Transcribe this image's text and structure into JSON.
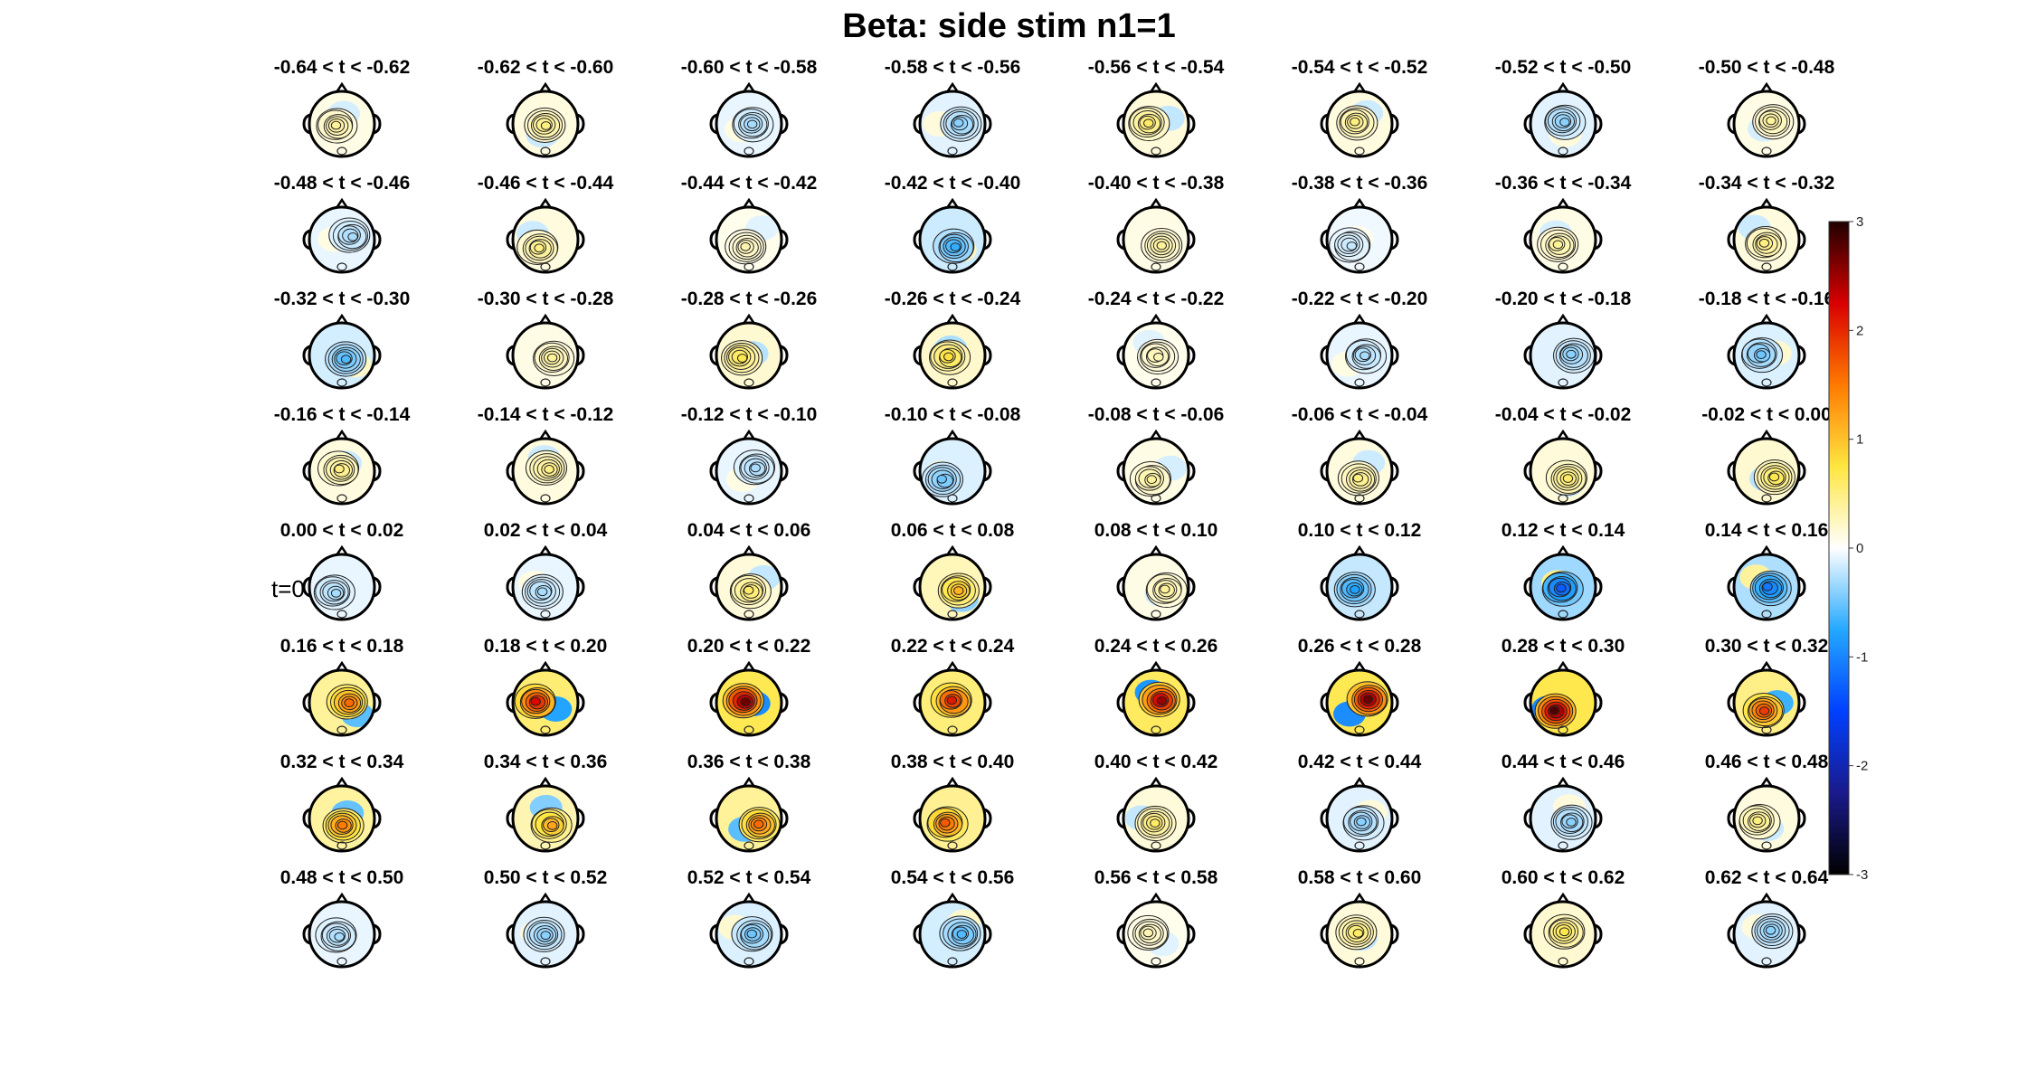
{
  "figure": {
    "title": "Beta: side stim  n1=1",
    "zero_marker_label": "t=0"
  },
  "chart_data": {
    "type": "heatmap",
    "description_kind": "topographic scalp maps grid",
    "title": "Beta: side stim  n1=1",
    "rows": 8,
    "cols": 8,
    "panel_titles": [
      "-0.64 < t < -0.62",
      "-0.62 < t < -0.60",
      "-0.60 < t < -0.58",
      "-0.58 < t < -0.56",
      "-0.56 < t < -0.54",
      "-0.54 < t < -0.52",
      "-0.52 < t < -0.50",
      "-0.50 < t < -0.48",
      "-0.48 < t < -0.46",
      "-0.46 < t < -0.44",
      "-0.44 < t < -0.42",
      "-0.42 < t < -0.40",
      "-0.40 < t < -0.38",
      "-0.38 < t < -0.36",
      "-0.36 < t < -0.34",
      "-0.34 < t < -0.32",
      "-0.32 < t < -0.30",
      "-0.30 < t < -0.28",
      "-0.28 < t < -0.26",
      "-0.26 < t < -0.24",
      "-0.24 < t < -0.22",
      "-0.22 < t < -0.20",
      "-0.20 < t < -0.18",
      "-0.18 < t < -0.16",
      "-0.16 < t < -0.14",
      "-0.14 < t < -0.12",
      "-0.12 < t < -0.10",
      "-0.10 < t < -0.08",
      "-0.08 < t < -0.06",
      "-0.06 < t < -0.04",
      "-0.04 < t < -0.02",
      "-0.02 < t < 0.00",
      "0.00 < t < 0.02",
      "0.02 < t < 0.04",
      "0.04 < t < 0.06",
      "0.06 < t < 0.08",
      "0.08 < t < 0.10",
      "0.10 < t < 0.12",
      "0.12 < t < 0.14",
      "0.14 < t < 0.16",
      "0.16 < t < 0.18",
      "0.18 < t < 0.20",
      "0.20 < t < 0.22",
      "0.22 < t < 0.24",
      "0.24 < t < 0.26",
      "0.26 < t < 0.28",
      "0.28 < t < 0.30",
      "0.30 < t < 0.32",
      "0.32 < t < 0.34",
      "0.34 < t < 0.36",
      "0.36 < t < 0.38",
      "0.38 < t < 0.40",
      "0.40 < t < 0.42",
      "0.42 < t < 0.44",
      "0.44 < t < 0.46",
      "0.46 < t < 0.48",
      "0.48 < t < 0.50",
      "0.50 < t < 0.52",
      "0.52 < t < 0.54",
      "0.54 < t < 0.56",
      "0.56 < t < 0.58",
      "0.58 < t < 0.60",
      "0.60 < t < 0.62",
      "0.62 < t < 0.64"
    ],
    "peak_values": [
      0.4,
      0.5,
      -0.3,
      -0.4,
      0.6,
      0.5,
      -0.4,
      0.4,
      -0.3,
      0.5,
      0.3,
      -0.7,
      0.4,
      -0.2,
      0.4,
      0.5,
      -0.6,
      0.4,
      0.7,
      0.8,
      0.3,
      -0.3,
      -0.4,
      -0.5,
      0.5,
      0.5,
      -0.3,
      -0.5,
      0.4,
      0.5,
      0.6,
      0.7,
      -0.3,
      -0.3,
      0.6,
      1.1,
      0.4,
      -0.8,
      -1.3,
      -1.1,
      1.6,
      2.2,
      2.7,
      2.1,
      2.5,
      2.7,
      2.8,
      1.9,
      1.5,
      1.2,
      1.6,
      1.7,
      0.6,
      -0.4,
      -0.4,
      0.5,
      -0.3,
      -0.4,
      -0.5,
      -0.6,
      0.3,
      0.6,
      0.7,
      -0.4
    ],
    "peak_positions_note": "values are peak z-score per map",
    "colorbar": {
      "min": -3,
      "max": 3,
      "ticks": [
        3,
        2,
        1,
        0,
        -1,
        -2,
        -3
      ],
      "colormap": [
        "#000000",
        "#1a1a8c",
        "#0040ff",
        "#24a8ff",
        "#ffffff",
        "#ffe640",
        "#ff7a00",
        "#d90000",
        "#200000"
      ]
    },
    "zero_time_row": 4
  }
}
